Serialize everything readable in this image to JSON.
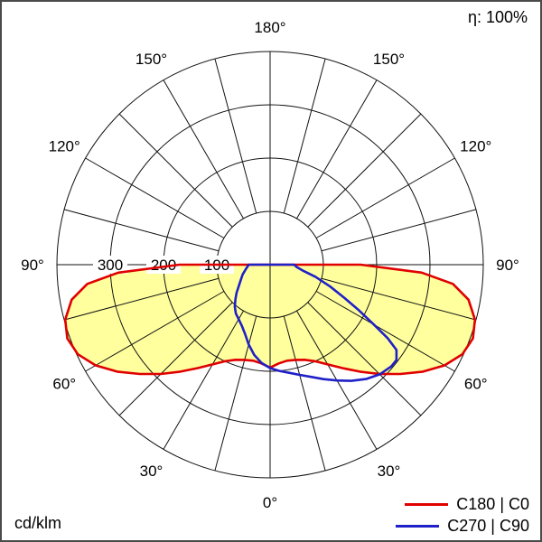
{
  "header": {
    "efficiency_label": "η: 100%"
  },
  "chart_data": {
    "type": "polar_photometric",
    "title": "",
    "units": "cd/klm",
    "efficiency": "η: 100%",
    "angle_ticks_deg": [
      0,
      30,
      60,
      90,
      120,
      150,
      180
    ],
    "radial_ticks": [
      100,
      200,
      300
    ],
    "r_max": 400,
    "grid_step_deg": 15,
    "angle_convention": "0 deg at nadir (bottom), 180 deg at zenith (top); negative gamma = left half, positive gamma = right half",
    "series": [
      {
        "name": "C180 | C0",
        "color": "#e00000",
        "fill": "#ffff9e",
        "points": [
          [
            -90,
            170
          ],
          [
            -87,
            285
          ],
          [
            -84,
            345
          ],
          [
            -80,
            378
          ],
          [
            -75,
            398
          ],
          [
            -70,
            405
          ],
          [
            -65,
            398
          ],
          [
            -60,
            378
          ],
          [
            -55,
            350
          ],
          [
            -50,
            319
          ],
          [
            -45,
            290
          ],
          [
            -40,
            262
          ],
          [
            -35,
            237
          ],
          [
            -30,
            216
          ],
          [
            -25,
            200
          ],
          [
            -20,
            190
          ],
          [
            -15,
            185
          ],
          [
            -10,
            183
          ],
          [
            -5,
            186
          ],
          [
            0,
            193
          ],
          [
            5,
            186
          ],
          [
            10,
            183
          ],
          [
            15,
            185
          ],
          [
            20,
            190
          ],
          [
            25,
            200
          ],
          [
            30,
            216
          ],
          [
            35,
            237
          ],
          [
            40,
            262
          ],
          [
            45,
            290
          ],
          [
            50,
            319
          ],
          [
            55,
            350
          ],
          [
            60,
            378
          ],
          [
            65,
            398
          ],
          [
            70,
            405
          ],
          [
            75,
            398
          ],
          [
            80,
            378
          ],
          [
            84,
            345
          ],
          [
            87,
            285
          ],
          [
            90,
            170
          ]
        ]
      },
      {
        "name": "C270 | C90",
        "color": "#2020c8",
        "fill": null,
        "points": [
          [
            -90,
            40
          ],
          [
            -80,
            46
          ],
          [
            -70,
            55
          ],
          [
            -60,
            65
          ],
          [
            -50,
            82
          ],
          [
            -45,
            92
          ],
          [
            -40,
            103
          ],
          [
            -35,
            112
          ],
          [
            -30,
            118
          ],
          [
            -25,
            126
          ],
          [
            -20,
            138
          ],
          [
            -15,
            155
          ],
          [
            -10,
            172
          ],
          [
            -5,
            185
          ],
          [
            0,
            194
          ],
          [
            5,
            200
          ],
          [
            10,
            206
          ],
          [
            15,
            214
          ],
          [
            20,
            224
          ],
          [
            25,
            237
          ],
          [
            30,
            251
          ],
          [
            35,
            266
          ],
          [
            40,
            280
          ],
          [
            45,
            291
          ],
          [
            50,
            297
          ],
          [
            53,
            297
          ],
          [
            56,
            286
          ],
          [
            58,
            260
          ],
          [
            60,
            225
          ],
          [
            63,
            185
          ],
          [
            66,
            152
          ],
          [
            70,
            120
          ],
          [
            75,
            88
          ],
          [
            80,
            62
          ],
          [
            85,
            50
          ],
          [
            90,
            45
          ]
        ]
      }
    ]
  }
}
